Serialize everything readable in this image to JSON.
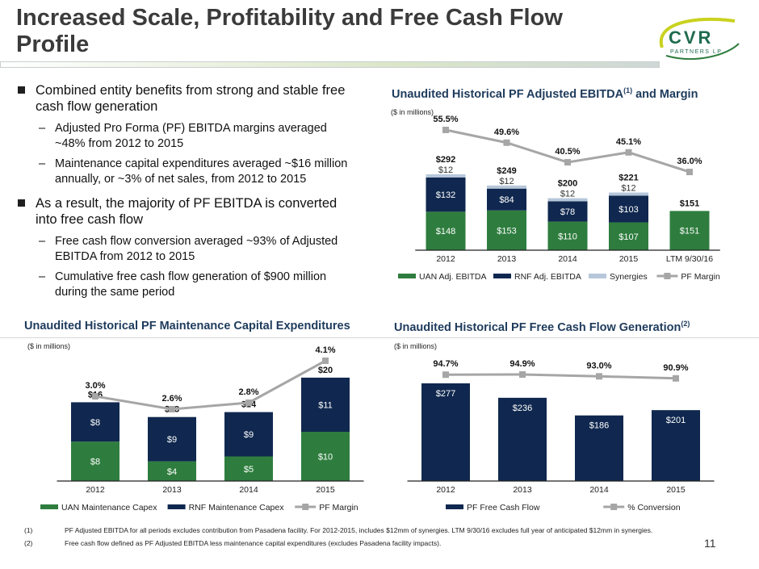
{
  "title": "Increased Scale, Profitability and Free Cash Flow Profile",
  "logo": {
    "text": "CVR",
    "subtext": "PARTNERS LP"
  },
  "bullets": [
    {
      "text": "Combined entity benefits from strong and stable free cash flow generation",
      "subs": [
        "Adjusted Pro Forma (PF) EBITDA margins averaged ~48% from 2012 to 2015",
        "Maintenance capital expenditures averaged ~$16 million annually, or ~3% of net sales, from 2012 to 2015"
      ]
    },
    {
      "text": "As a result, the majority of PF EBITDA is converted into free cash flow",
      "subs": [
        "Free cash flow conversion averaged ~93% of Adjusted EBITDA from 2012 to 2015",
        "Cumulative free cash flow generation of $900 million during the same period"
      ]
    }
  ],
  "colors": {
    "uan": "#2e7d3e",
    "rnf": "#10284f",
    "syn": "#b6c7da",
    "line": "#a6a6a6",
    "title": "#1e3b5c"
  },
  "chart_data": [
    {
      "type": "bar",
      "stacked": true,
      "title": "Unaudited Historical PF Adjusted EBITDA",
      "title_sup": "(1)",
      "title_tail": " and Margin",
      "unit_note": "($ in millions)",
      "categories": [
        "2012",
        "2013",
        "2014",
        "2015",
        "LTM 9/30/16"
      ],
      "series": [
        {
          "name": "UAN Adj. EBITDA",
          "values": [
            148,
            153,
            110,
            107,
            151
          ]
        },
        {
          "name": "RNF Adj. EBITDA",
          "values": [
            132,
            84,
            78,
            103,
            null
          ]
        },
        {
          "name": "Synergies",
          "values": [
            12,
            12,
            12,
            12,
            null
          ]
        }
      ],
      "totals": [
        292,
        249,
        200,
        221,
        151
      ],
      "line": {
        "name": "PF Margin",
        "values": [
          55.5,
          49.6,
          40.5,
          45.1,
          36.0
        ]
      }
    },
    {
      "type": "bar",
      "stacked": true,
      "title": "Unaudited Historical PF Maintenance Capital Expenditures",
      "unit_note": "($ in millions)",
      "categories": [
        "2012",
        "2013",
        "2014",
        "2015"
      ],
      "series": [
        {
          "name": "UAN Maintenance Capex",
          "values": [
            8,
            4,
            5,
            10
          ]
        },
        {
          "name": "RNF Maintenance Capex",
          "values": [
            8,
            9,
            9,
            11
          ]
        }
      ],
      "totals": [
        16,
        13,
        14,
        20
      ],
      "line": {
        "name": "PF Margin",
        "values": [
          3.0,
          2.6,
          2.8,
          4.1
        ]
      }
    },
    {
      "type": "bar",
      "title": "Unaudited Historical PF Free Cash Flow Generation",
      "title_sup": "(2)",
      "unit_note": "($ in millions)",
      "categories": [
        "2012",
        "2013",
        "2014",
        "2015"
      ],
      "series": [
        {
          "name": "PF Free Cash Flow",
          "values": [
            277,
            236,
            186,
            201
          ]
        }
      ],
      "line": {
        "name": "% Conversion",
        "values": [
          94.7,
          94.9,
          93.0,
          90.9
        ]
      }
    }
  ],
  "footnotes": [
    {
      "num": "(1)",
      "text": "PF Adjusted EBITDA for all periods excludes contribution from Pasadena facility.  For 2012-2015, includes $12mm of synergies.  LTM 9/30/16 excludes full year of anticipated $12mm in synergies."
    },
    {
      "num": "(2)",
      "text": "Free cash flow defined as PF Adjusted EBITDA less maintenance capital expenditures (excludes Pasadena facility impacts)."
    }
  ],
  "page_number": "11"
}
